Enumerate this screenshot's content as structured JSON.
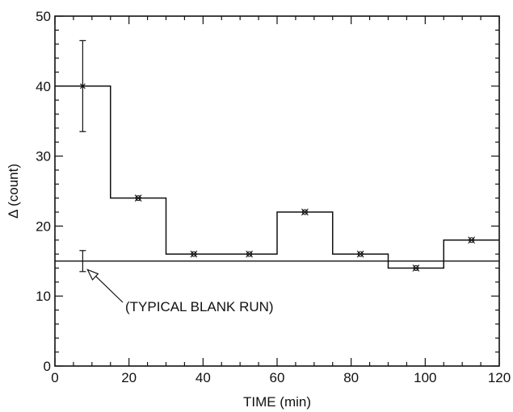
{
  "chart_data": {
    "type": "line",
    "title": "",
    "xlabel": "TIME (min)",
    "ylabel": "Δ (count)",
    "xlim": [
      0,
      120
    ],
    "ylim": [
      0,
      50
    ],
    "x_ticks": [
      0,
      20,
      40,
      60,
      80,
      100,
      120
    ],
    "y_ticks": [
      0,
      10,
      20,
      30,
      40,
      50
    ],
    "x_tick_labels": [
      "0",
      "20",
      "40",
      "60",
      "80",
      "100",
      "120"
    ],
    "y_tick_labels": [
      "0",
      "10",
      "20",
      "30",
      "40",
      "50"
    ],
    "grid": false,
    "legend": "none",
    "series": [
      {
        "style": "step",
        "bins": [
          {
            "x_start": 0,
            "x_end": 15,
            "y": 40
          },
          {
            "x_start": 15,
            "x_end": 30,
            "y": 24
          },
          {
            "x_start": 30,
            "x_end": 45,
            "y": 16
          },
          {
            "x_start": 45,
            "x_end": 60,
            "y": 16
          },
          {
            "x_start": 60,
            "x_end": 75,
            "y": 22
          },
          {
            "x_start": 75,
            "x_end": 90,
            "y": 16
          },
          {
            "x_start": 90,
            "x_end": 105,
            "y": 14
          },
          {
            "x_start": 105,
            "x_end": 120,
            "y": 18
          }
        ],
        "points": [
          {
            "x": 7.5,
            "y": 40,
            "y_err_low": 33.5,
            "y_err_high": 46.5
          },
          {
            "x": 22.5,
            "y": 24
          },
          {
            "x": 37.5,
            "y": 16
          },
          {
            "x": 52.5,
            "y": 16
          },
          {
            "x": 67.5,
            "y": 22
          },
          {
            "x": 82.5,
            "y": 16
          },
          {
            "x": 97.5,
            "y": 14
          },
          {
            "x": 112.5,
            "y": 18
          }
        ]
      },
      {
        "style": "horizontal",
        "y": 15,
        "x_range": [
          0,
          120
        ],
        "error_bar": {
          "x": 7.5,
          "y_low": 13.5,
          "y_high": 16.5
        }
      }
    ],
    "annotations": [
      {
        "text": "(TYPICAL BLANK RUN)",
        "points_to": {
          "x": 7.5,
          "y": 14
        }
      }
    ]
  }
}
